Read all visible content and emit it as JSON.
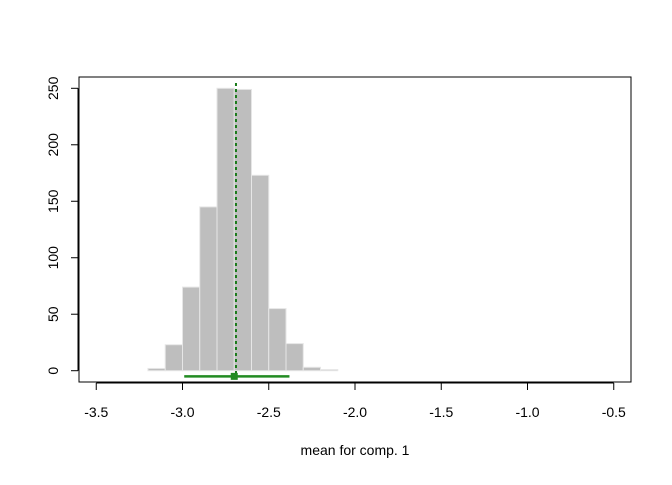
{
  "chart_data": {
    "type": "bar",
    "title": "",
    "xlabel": "mean for comp. 1",
    "ylabel": "",
    "xlim": [
      -3.6,
      -0.4
    ],
    "ylim": [
      -10,
      260
    ],
    "grid": false,
    "x_ticks": [
      -3.5,
      -3.0,
      -2.5,
      -2.0,
      -1.5,
      -1.0,
      -0.5
    ],
    "x_tick_labels": [
      "-3.5",
      "-3.0",
      "-2.5",
      "-2.0",
      "-1.5",
      "-1.0",
      "-0.5"
    ],
    "y_ticks": [
      0,
      50,
      100,
      150,
      200,
      250
    ],
    "y_tick_labels": [
      "0",
      "50",
      "100",
      "150",
      "200",
      "250"
    ],
    "bins": [
      {
        "x0": -3.2,
        "x1": -3.1,
        "count": 2
      },
      {
        "x0": -3.1,
        "x1": -3.0,
        "count": 23
      },
      {
        "x0": -3.0,
        "x1": -2.9,
        "count": 74
      },
      {
        "x0": -2.9,
        "x1": -2.8,
        "count": 145
      },
      {
        "x0": -2.8,
        "x1": -2.7,
        "count": 250
      },
      {
        "x0": -2.7,
        "x1": -2.6,
        "count": 249
      },
      {
        "x0": -2.6,
        "x1": -2.5,
        "count": 173
      },
      {
        "x0": -2.5,
        "x1": -2.4,
        "count": 55
      },
      {
        "x0": -2.4,
        "x1": -2.3,
        "count": 24
      },
      {
        "x0": -2.3,
        "x1": -2.2,
        "count": 3
      },
      {
        "x0": -2.2,
        "x1": -2.1,
        "count": 1
      }
    ],
    "reference_line": {
      "x": -2.69,
      "style": "dotted",
      "color": "#1a7a1a"
    },
    "interval": {
      "lower": -2.99,
      "upper": -2.38,
      "point": -2.7,
      "y": -5,
      "color": "#228b22"
    },
    "colors": {
      "bar_fill": "#bebebe",
      "bar_edge": "#e6e6e6",
      "axis": "#000000"
    }
  }
}
